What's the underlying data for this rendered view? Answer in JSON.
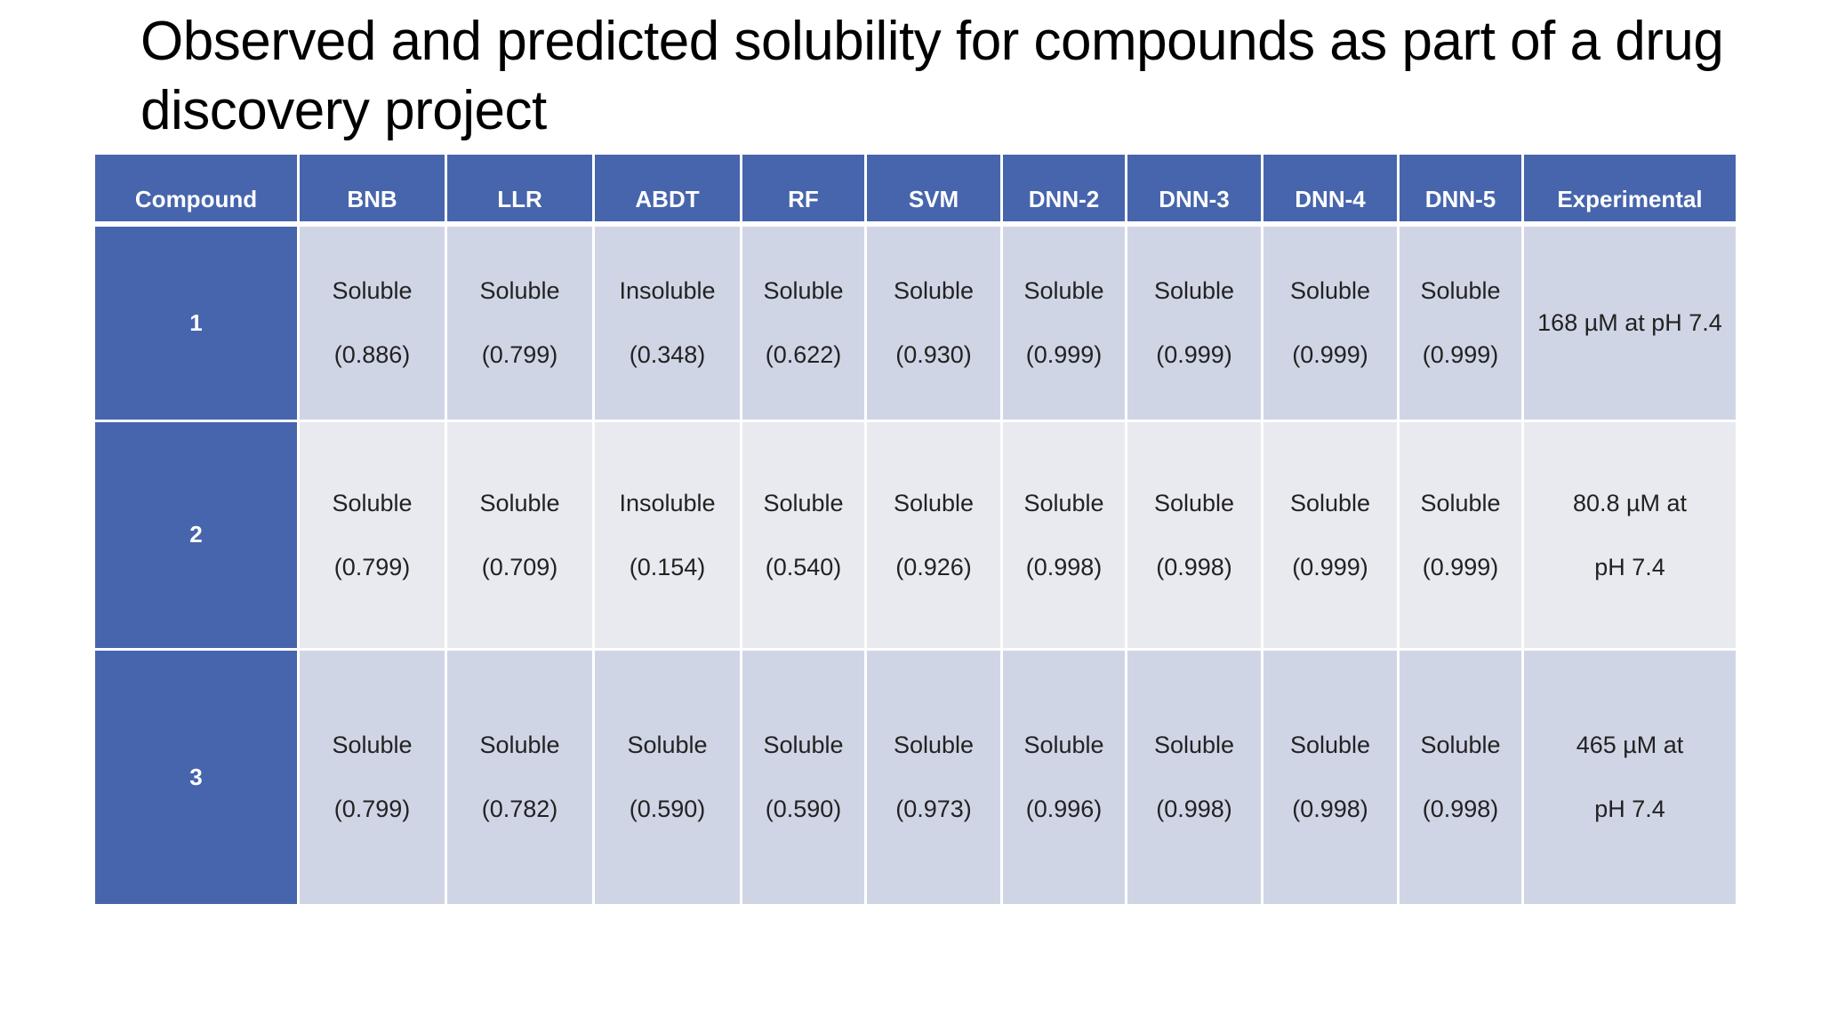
{
  "title": "Observed and predicted solubility for compounds as part of a drug discovery project",
  "table": {
    "columns": [
      "Compound",
      "BNB",
      "LLR",
      "ABDT",
      "RF",
      "SVM",
      "DNN-2",
      "DNN-3",
      "DNN-4",
      "DNN-5",
      "Experimental"
    ],
    "rows": [
      {
        "compound": "1",
        "predictions": [
          {
            "label": "Soluble",
            "score": "(0.886)"
          },
          {
            "label": "Soluble",
            "score": "(0.799)"
          },
          {
            "label": "Insoluble",
            "score": "(0.348)"
          },
          {
            "label": "Soluble",
            "score": "(0.622)"
          },
          {
            "label": "Soluble",
            "score": "(0.930)"
          },
          {
            "label": "Soluble",
            "score": "(0.999)"
          },
          {
            "label": "Soluble",
            "score": "(0.999)"
          },
          {
            "label": "Soluble",
            "score": "(0.999)"
          },
          {
            "label": "Soluble",
            "score": "(0.999)"
          }
        ],
        "experimental": [
          "168 µM at pH 7.4"
        ]
      },
      {
        "compound": "2",
        "predictions": [
          {
            "label": "Soluble",
            "score": "(0.799)"
          },
          {
            "label": "Soluble",
            "score": "(0.709)"
          },
          {
            "label": "Insoluble",
            "score": "(0.154)"
          },
          {
            "label": "Soluble",
            "score": "(0.540)"
          },
          {
            "label": "Soluble",
            "score": "(0.926)"
          },
          {
            "label": "Soluble",
            "score": "(0.998)"
          },
          {
            "label": "Soluble",
            "score": "(0.998)"
          },
          {
            "label": "Soluble",
            "score": "(0.999)"
          },
          {
            "label": "Soluble",
            "score": "(0.999)"
          }
        ],
        "experimental": [
          "80.8 µM at",
          "pH 7.4"
        ]
      },
      {
        "compound": "3",
        "predictions": [
          {
            "label": "Soluble",
            "score": "(0.799)"
          },
          {
            "label": "Soluble",
            "score": "(0.782)"
          },
          {
            "label": "Soluble",
            "score": "(0.590)"
          },
          {
            "label": "Soluble",
            "score": "(0.590)"
          },
          {
            "label": "Soluble",
            "score": "(0.973)"
          },
          {
            "label": "Soluble",
            "score": "(0.996)"
          },
          {
            "label": "Soluble",
            "score": "(0.998)"
          },
          {
            "label": "Soluble",
            "score": "(0.998)"
          },
          {
            "label": "Soluble",
            "score": "(0.998)"
          }
        ],
        "experimental": [
          "465 µM at",
          "pH 7.4"
        ]
      }
    ]
  },
  "colors": {
    "header_blue": "#4765ad",
    "row_band_dark": "#d0d5e6",
    "row_band_light": "#e9eaf0",
    "border": "#ffffff"
  }
}
